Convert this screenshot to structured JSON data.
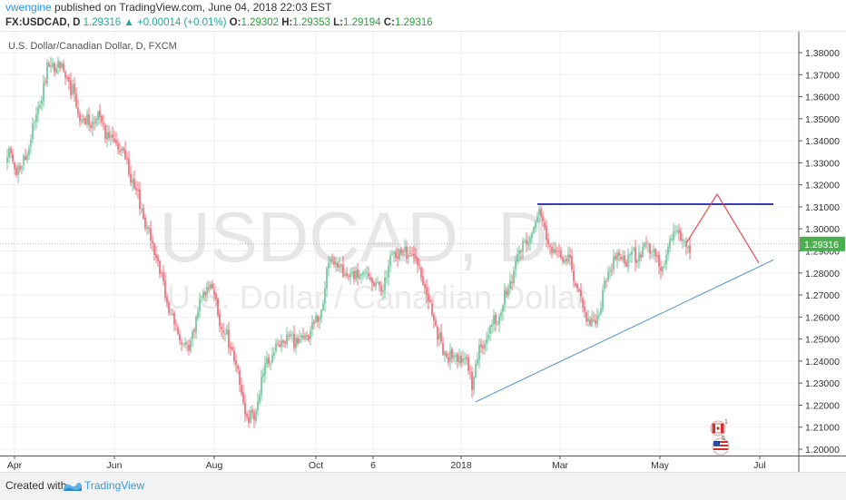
{
  "header": {
    "author": "vwengine",
    "published_text": " published on TradingView.com, June 04, 2018 22:03 EST",
    "symbol_line": "FX:USDCAD, D",
    "last": "1.29316",
    "change": "+0.00014 (+0.01%)",
    "o_label": "O:",
    "o_value": "1.29302",
    "h_label": "H:",
    "h_value": "1.29353",
    "l_label": "L:",
    "l_value": "1.29194",
    "c_label": "C:",
    "c_value": "1.29316"
  },
  "footer": {
    "created_with": "Created with",
    "brand": "TradingView"
  },
  "chart_data": {
    "type": "candlestick",
    "title": "U.S. Dollar/Canadian Dollar, D, FXCM",
    "watermark_symbol": "USDCAD, D",
    "watermark_name": "U.S. Dollar / Canadian Dollar",
    "y_ticks": [
      "1.38000",
      "1.37000",
      "1.36000",
      "1.35000",
      "1.34000",
      "1.33000",
      "1.32000",
      "1.31000",
      "1.30000",
      "1.29000",
      "1.28000",
      "1.27000",
      "1.26000",
      "1.25000",
      "1.24000",
      "1.23000",
      "1.22000",
      "1.21000",
      "1.20000"
    ],
    "x_ticks": [
      "Apr",
      "Jun",
      "Aug",
      "Oct",
      "6",
      "2018",
      "Mar",
      "May",
      "Jul"
    ],
    "ylim": [
      1.1935,
      1.3875
    ],
    "last_price_label": "1.29316",
    "colors": {
      "up": "#53b987",
      "down": "#eb4d5c",
      "resistance": "#1f1fa8",
      "support": "#4a90d9",
      "projection": "#e84855",
      "last_price": "#4caf50"
    },
    "anchors": [
      [
        0,
        1.334
      ],
      [
        8,
        1.326
      ],
      [
        14,
        1.345
      ],
      [
        22,
        1.372
      ],
      [
        28,
        1.375
      ],
      [
        34,
        1.366
      ],
      [
        40,
        1.351
      ],
      [
        45,
        1.347
      ],
      [
        50,
        1.351
      ],
      [
        58,
        1.34
      ],
      [
        64,
        1.335
      ],
      [
        70,
        1.32
      ],
      [
        76,
        1.303
      ],
      [
        82,
        1.287
      ],
      [
        88,
        1.267
      ],
      [
        94,
        1.252
      ],
      [
        100,
        1.246
      ],
      [
        106,
        1.267
      ],
      [
        112,
        1.275
      ],
      [
        118,
        1.256
      ],
      [
        124,
        1.245
      ],
      [
        128,
        1.23
      ],
      [
        132,
        1.213
      ],
      [
        136,
        1.215
      ],
      [
        142,
        1.237
      ],
      [
        148,
        1.245
      ],
      [
        154,
        1.252
      ],
      [
        160,
        1.249
      ],
      [
        166,
        1.254
      ],
      [
        172,
        1.26
      ],
      [
        178,
        1.287
      ],
      [
        184,
        1.281
      ],
      [
        190,
        1.278
      ],
      [
        196,
        1.28
      ],
      [
        202,
        1.276
      ],
      [
        206,
        1.271
      ],
      [
        212,
        1.289
      ],
      [
        218,
        1.289
      ],
      [
        224,
        1.288
      ],
      [
        228,
        1.279
      ],
      [
        234,
        1.262
      ],
      [
        240,
        1.244
      ],
      [
        246,
        1.242
      ],
      [
        252,
        1.241
      ],
      [
        256,
        1.23
      ],
      [
        260,
        1.244
      ],
      [
        266,
        1.256
      ],
      [
        272,
        1.262
      ],
      [
        278,
        1.279
      ],
      [
        284,
        1.295
      ],
      [
        288,
        1.294
      ],
      [
        292,
        1.31
      ],
      [
        296,
        1.298
      ],
      [
        302,
        1.289
      ],
      [
        306,
        1.287
      ],
      [
        310,
        1.284
      ],
      [
        316,
        1.267
      ],
      [
        320,
        1.259
      ],
      [
        324,
        1.256
      ],
      [
        328,
        1.271
      ],
      [
        334,
        1.286
      ],
      [
        340,
        1.287
      ],
      [
        346,
        1.287
      ],
      [
        352,
        1.293
      ],
      [
        356,
        1.29
      ],
      [
        360,
        1.281
      ],
      [
        364,
        1.291
      ],
      [
        368,
        1.3
      ],
      [
        372,
        1.294
      ],
      [
        376,
        1.293
      ]
    ],
    "horizontal_resistance": {
      "price": 1.3112,
      "from_index": 292,
      "to_index": 422
    },
    "support_trendline": {
      "from": [
        258,
        1.2215
      ],
      "to": [
        422,
        1.2859
      ]
    },
    "projection_path": [
      [
        374,
        1.2935
      ],
      [
        391,
        1.3158
      ],
      [
        414,
        1.2845
      ]
    ],
    "candles": 377
  }
}
